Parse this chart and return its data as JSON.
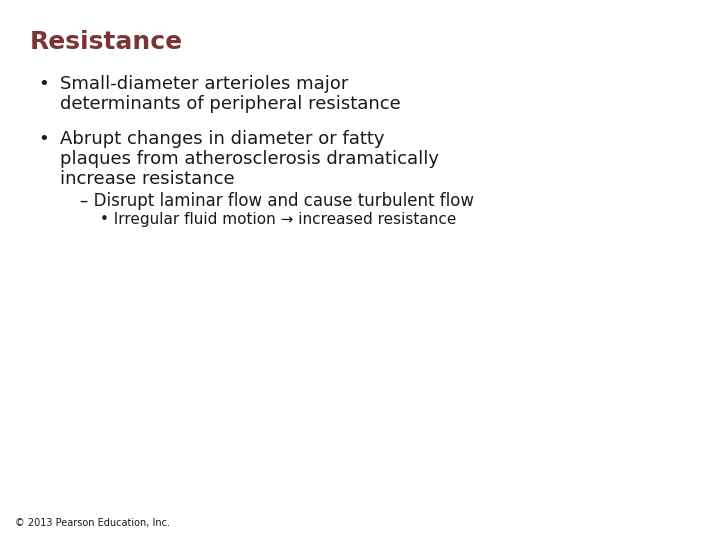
{
  "background_color": "#ffffff",
  "title": "Resistance",
  "title_color": "#7B3535",
  "title_fontsize": 18,
  "bullet1_line1": "Small-diameter arterioles major",
  "bullet1_line2": "determinants of peripheral resistance",
  "bullet2_line1": "Abrupt changes in diameter or fatty",
  "bullet2_line2": "plaques from atherosclerosis dramatically",
  "bullet2_line3": "increase resistance",
  "sub1": "– Disrupt laminar flow and cause turbulent flow",
  "sub2": "• Irregular fluid motion → increased resistance",
  "footer": "© 2013 Pearson Education, Inc.",
  "text_color": "#1a1a1a",
  "main_fontsize": 13,
  "sub1_fontsize": 12,
  "sub2_fontsize": 11,
  "footer_fontsize": 7
}
